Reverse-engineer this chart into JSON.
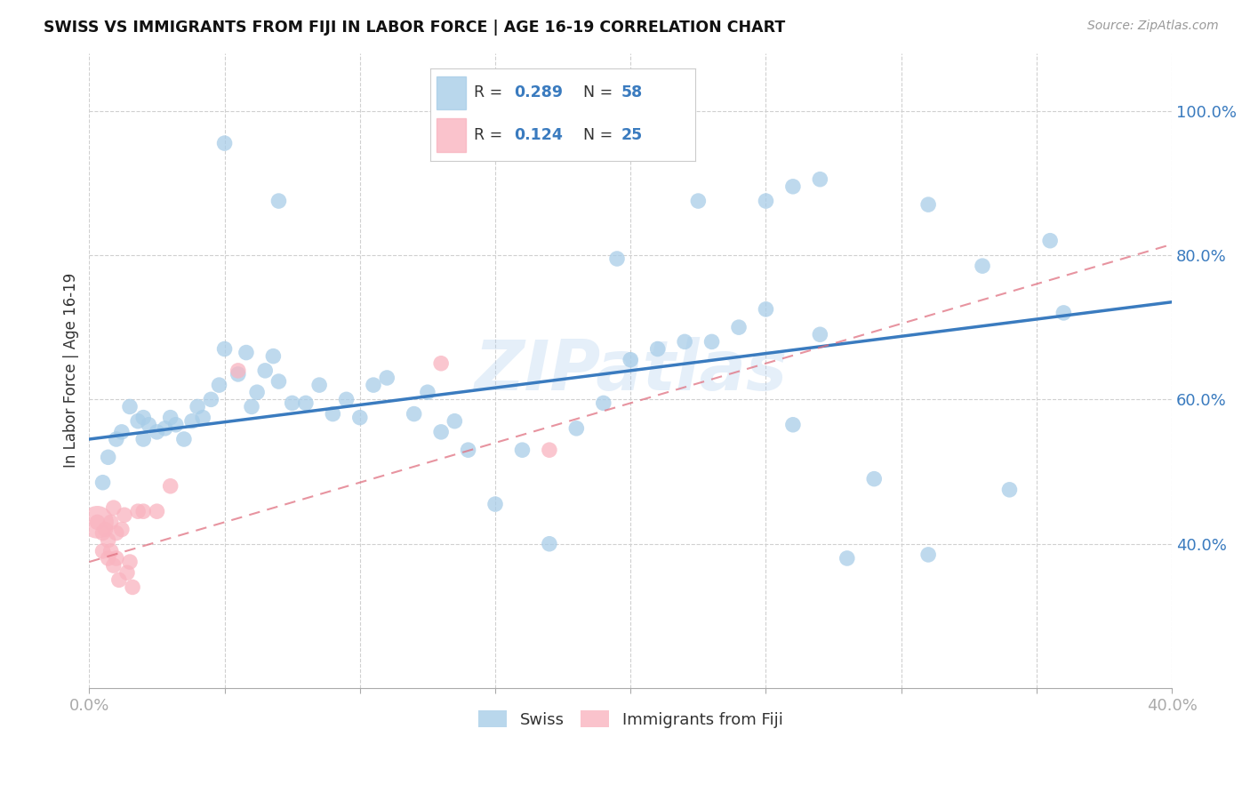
{
  "title": "SWISS VS IMMIGRANTS FROM FIJI IN LABOR FORCE | AGE 16-19 CORRELATION CHART",
  "source": "Source: ZipAtlas.com",
  "ylabel": "In Labor Force | Age 16-19",
  "x_min": 0.0,
  "x_max": 0.4,
  "y_min": 0.2,
  "y_max": 1.08,
  "x_tick_positions": [
    0.0,
    0.05,
    0.1,
    0.15,
    0.2,
    0.25,
    0.3,
    0.35,
    0.4
  ],
  "x_tick_labels": [
    "0.0%",
    "",
    "",
    "",
    "",
    "",
    "",
    "",
    "40.0%"
  ],
  "y_ticks": [
    0.4,
    0.6,
    0.8,
    1.0
  ],
  "y_tick_labels": [
    "40.0%",
    "60.0%",
    "80.0%",
    "100.0%"
  ],
  "swiss_color": "#a8cde8",
  "fiji_color": "#f9b4c0",
  "swiss_line_color": "#3a7bbf",
  "fiji_line_color": "#e07080",
  "swiss_R": "0.289",
  "swiss_N": "58",
  "fiji_R": "0.124",
  "fiji_N": "25",
  "watermark": "ZIPatlas",
  "swiss_x": [
    0.005,
    0.007,
    0.01,
    0.012,
    0.015,
    0.018,
    0.02,
    0.02,
    0.022,
    0.025,
    0.028,
    0.03,
    0.032,
    0.035,
    0.038,
    0.04,
    0.042,
    0.045,
    0.048,
    0.05,
    0.055,
    0.058,
    0.06,
    0.062,
    0.065,
    0.068,
    0.07,
    0.075,
    0.08,
    0.085,
    0.09,
    0.095,
    0.1,
    0.105,
    0.11,
    0.12,
    0.125,
    0.13,
    0.135,
    0.14,
    0.15,
    0.16,
    0.17,
    0.18,
    0.19,
    0.195,
    0.2,
    0.21,
    0.22,
    0.23,
    0.24,
    0.25,
    0.26,
    0.27,
    0.29,
    0.31,
    0.34,
    0.36
  ],
  "swiss_y": [
    0.485,
    0.52,
    0.545,
    0.555,
    0.59,
    0.57,
    0.575,
    0.545,
    0.565,
    0.555,
    0.56,
    0.575,
    0.565,
    0.545,
    0.57,
    0.59,
    0.575,
    0.6,
    0.62,
    0.67,
    0.635,
    0.665,
    0.59,
    0.61,
    0.64,
    0.66,
    0.625,
    0.595,
    0.595,
    0.62,
    0.58,
    0.6,
    0.575,
    0.62,
    0.63,
    0.58,
    0.61,
    0.555,
    0.57,
    0.53,
    0.455,
    0.53,
    0.4,
    0.56,
    0.595,
    0.795,
    0.655,
    0.67,
    0.68,
    0.68,
    0.7,
    0.725,
    0.565,
    0.69,
    0.49,
    0.385,
    0.475,
    0.72
  ],
  "swiss_x_high": [
    0.195,
    0.225,
    0.25,
    0.26,
    0.27,
    0.05,
    0.07,
    0.33,
    0.355,
    0.31,
    0.28
  ],
  "swiss_y_high": [
    1.005,
    0.875,
    0.875,
    0.895,
    0.905,
    0.955,
    0.875,
    0.785,
    0.82,
    0.87,
    0.38
  ],
  "fiji_x": [
    0.003,
    0.005,
    0.005,
    0.006,
    0.007,
    0.007,
    0.008,
    0.008,
    0.009,
    0.009,
    0.01,
    0.01,
    0.011,
    0.012,
    0.013,
    0.014,
    0.015,
    0.016,
    0.018,
    0.02,
    0.025,
    0.03,
    0.055,
    0.13,
    0.17
  ],
  "fiji_y": [
    0.43,
    0.415,
    0.39,
    0.42,
    0.405,
    0.38,
    0.43,
    0.39,
    0.45,
    0.37,
    0.415,
    0.38,
    0.35,
    0.42,
    0.44,
    0.36,
    0.375,
    0.34,
    0.445,
    0.445,
    0.445,
    0.48,
    0.64,
    0.65,
    0.53
  ],
  "fiji_large_x": [
    0.003
  ],
  "fiji_large_y": [
    0.43
  ],
  "swiss_line_x0": 0.0,
  "swiss_line_y0": 0.545,
  "swiss_line_x1": 0.4,
  "swiss_line_y1": 0.735,
  "fiji_line_x0": 0.0,
  "fiji_line_y0": 0.375,
  "fiji_line_x1": 0.4,
  "fiji_line_y1": 0.815,
  "background_color": "#ffffff",
  "grid_color": "#d0d0d0",
  "legend_color": "#3a7bbf"
}
